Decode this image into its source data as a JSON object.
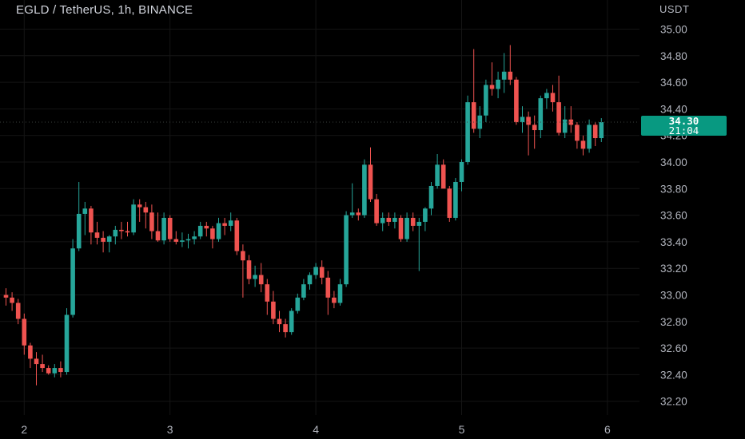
{
  "header": {
    "title": "EGLD / TetherUS, 1h, BINANCE",
    "currency": "USDT"
  },
  "last_price": {
    "value": "34.30",
    "countdown": "21:04"
  },
  "colors": {
    "up": "#26a69a",
    "down": "#ef5350",
    "background": "#000000",
    "badge": "#089981"
  },
  "chart_data": {
    "type": "candlestick",
    "y_ticks": [
      "35.00",
      "34.80",
      "34.60",
      "34.40",
      "34.20",
      "34.00",
      "33.80",
      "33.60",
      "33.40",
      "33.20",
      "33.00",
      "32.80",
      "32.60",
      "32.40",
      "32.20"
    ],
    "x_ticks": [
      {
        "label": "2",
        "index": 3
      },
      {
        "label": "3",
        "index": 27
      },
      {
        "label": "4",
        "index": 51
      },
      {
        "label": "5",
        "index": 75
      },
      {
        "label": "6",
        "index": 99
      }
    ],
    "ylim": [
      32.14,
      35.14
    ],
    "grid": true,
    "candles": [
      [
        33.0,
        33.05,
        32.92,
        32.98
      ],
      [
        32.98,
        33.02,
        32.88,
        32.94
      ],
      [
        32.94,
        32.97,
        32.78,
        32.82
      ],
      [
        32.82,
        32.86,
        32.55,
        32.62
      ],
      [
        32.62,
        32.64,
        32.45,
        32.52
      ],
      [
        32.52,
        32.57,
        32.32,
        32.48
      ],
      [
        32.48,
        32.55,
        32.42,
        32.45
      ],
      [
        32.45,
        32.47,
        32.4,
        32.41
      ],
      [
        32.41,
        32.48,
        32.38,
        32.45
      ],
      [
        32.45,
        32.5,
        32.38,
        32.42
      ],
      [
        32.42,
        32.9,
        32.4,
        32.85
      ],
      [
        32.85,
        33.42,
        32.83,
        33.35
      ],
      [
        33.35,
        33.85,
        33.33,
        33.61
      ],
      [
        33.61,
        33.7,
        33.45,
        33.65
      ],
      [
        33.65,
        33.67,
        33.38,
        33.47
      ],
      [
        33.47,
        33.55,
        33.38,
        33.43
      ],
      [
        33.43,
        33.48,
        33.32,
        33.4
      ],
      [
        33.4,
        33.45,
        33.32,
        33.44
      ],
      [
        33.44,
        33.52,
        33.38,
        33.49
      ],
      [
        33.49,
        33.55,
        33.42,
        33.48
      ],
      [
        33.48,
        33.55,
        33.44,
        33.47
      ],
      [
        33.47,
        33.72,
        33.45,
        33.68
      ],
      [
        33.68,
        33.72,
        33.55,
        33.66
      ],
      [
        33.66,
        33.7,
        33.5,
        33.62
      ],
      [
        33.62,
        33.68,
        33.42,
        33.48
      ],
      [
        33.48,
        33.62,
        33.4,
        33.41
      ],
      [
        33.41,
        33.62,
        33.38,
        33.58
      ],
      [
        33.58,
        33.6,
        33.4,
        33.42
      ],
      [
        33.42,
        33.48,
        33.38,
        33.4
      ],
      [
        33.4,
        33.47,
        33.36,
        33.41
      ],
      [
        33.41,
        33.46,
        33.35,
        33.42
      ],
      [
        33.42,
        33.48,
        33.38,
        33.44
      ],
      [
        33.44,
        33.55,
        33.42,
        33.52
      ],
      [
        33.52,
        33.55,
        33.44,
        33.5
      ],
      [
        33.5,
        33.52,
        33.35,
        33.42
      ],
      [
        33.42,
        33.58,
        33.4,
        33.54
      ],
      [
        33.54,
        33.58,
        33.45,
        33.52
      ],
      [
        33.52,
        33.62,
        33.48,
        33.56
      ],
      [
        33.56,
        33.58,
        33.3,
        33.33
      ],
      [
        33.33,
        33.38,
        32.98,
        33.26
      ],
      [
        33.26,
        33.3,
        33.08,
        33.12
      ],
      [
        33.12,
        33.22,
        33.06,
        33.15
      ],
      [
        33.15,
        33.24,
        33.02,
        33.08
      ],
      [
        33.08,
        33.12,
        32.85,
        32.95
      ],
      [
        32.95,
        33.03,
        32.78,
        32.82
      ],
      [
        32.82,
        32.88,
        32.72,
        32.78
      ],
      [
        32.78,
        32.82,
        32.68,
        32.72
      ],
      [
        32.72,
        32.9,
        32.7,
        32.88
      ],
      [
        32.88,
        33.01,
        32.86,
        32.98
      ],
      [
        32.98,
        33.12,
        32.96,
        33.08
      ],
      [
        33.08,
        33.17,
        33.04,
        33.15
      ],
      [
        33.15,
        33.24,
        33.12,
        33.21
      ],
      [
        33.21,
        33.26,
        33.08,
        33.13
      ],
      [
        33.13,
        33.18,
        32.85,
        32.98
      ],
      [
        32.98,
        33.03,
        32.9,
        32.94
      ],
      [
        32.94,
        33.12,
        32.92,
        33.08
      ],
      [
        33.08,
        33.63,
        33.06,
        33.6
      ],
      [
        33.6,
        33.84,
        33.58,
        33.62
      ],
      [
        33.62,
        33.65,
        33.56,
        33.6
      ],
      [
        33.6,
        34.02,
        33.58,
        33.98
      ],
      [
        33.98,
        34.11,
        33.7,
        33.72
      ],
      [
        33.72,
        33.76,
        33.52,
        33.54
      ],
      [
        33.54,
        33.62,
        33.48,
        33.58
      ],
      [
        33.58,
        33.62,
        33.52,
        33.55
      ],
      [
        33.55,
        33.62,
        33.5,
        33.58
      ],
      [
        33.58,
        33.6,
        33.4,
        33.42
      ],
      [
        33.42,
        33.62,
        33.4,
        33.58
      ],
      [
        33.58,
        33.62,
        33.48,
        33.52
      ],
      [
        33.52,
        33.58,
        33.18,
        33.55
      ],
      [
        33.55,
        33.66,
        33.48,
        33.65
      ],
      [
        33.65,
        33.85,
        33.6,
        33.82
      ],
      [
        33.82,
        34.06,
        33.8,
        33.98
      ],
      [
        33.98,
        34.02,
        33.82,
        33.8
      ],
      [
        33.8,
        33.82,
        33.55,
        33.58
      ],
      [
        33.58,
        33.88,
        33.56,
        33.85
      ],
      [
        33.85,
        34.02,
        33.78,
        34.0
      ],
      [
        34.0,
        34.5,
        33.98,
        34.45
      ],
      [
        34.45,
        34.85,
        34.22,
        34.25
      ],
      [
        34.25,
        34.42,
        34.18,
        34.35
      ],
      [
        34.35,
        34.62,
        34.3,
        34.58
      ],
      [
        34.58,
        34.75,
        34.5,
        34.55
      ],
      [
        34.55,
        34.68,
        34.48,
        34.62
      ],
      [
        34.62,
        34.82,
        34.52,
        34.68
      ],
      [
        34.68,
        34.88,
        34.58,
        34.62
      ],
      [
        34.62,
        34.64,
        34.28,
        34.3
      ],
      [
        34.3,
        34.42,
        34.22,
        34.34
      ],
      [
        34.34,
        34.38,
        34.05,
        34.28
      ],
      [
        34.28,
        34.35,
        34.1,
        34.24
      ],
      [
        34.24,
        34.5,
        34.18,
        34.48
      ],
      [
        34.48,
        34.55,
        34.4,
        34.52
      ],
      [
        34.52,
        34.58,
        34.38,
        34.45
      ],
      [
        34.45,
        34.65,
        34.2,
        34.22
      ],
      [
        34.22,
        34.42,
        34.18,
        34.32
      ],
      [
        34.32,
        34.42,
        34.22,
        34.28
      ],
      [
        34.28,
        34.3,
        34.1,
        34.16
      ],
      [
        34.16,
        34.2,
        34.05,
        34.1
      ],
      [
        34.1,
        34.32,
        34.07,
        34.28
      ],
      [
        34.28,
        34.3,
        34.12,
        34.18
      ],
      [
        34.18,
        34.33,
        34.15,
        34.3
      ]
    ]
  }
}
